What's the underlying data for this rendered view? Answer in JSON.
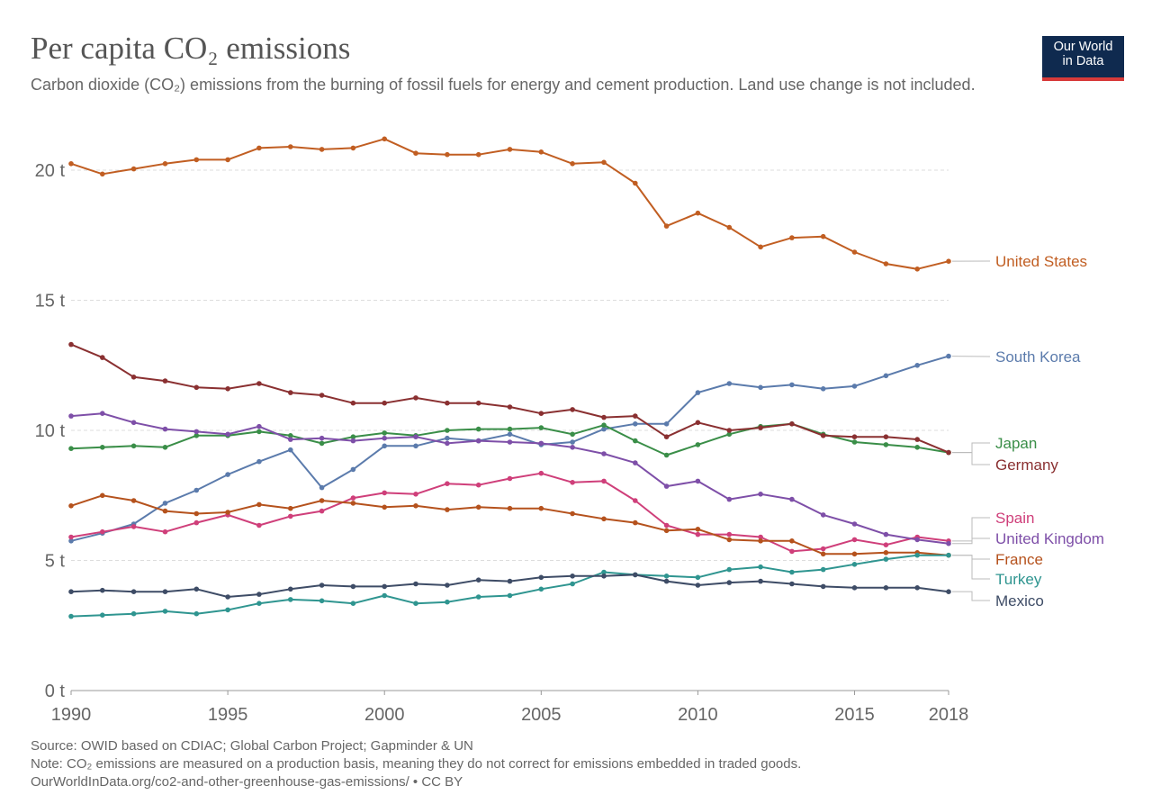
{
  "header": {
    "title": "Per capita CO₂ emissions",
    "subtitle": "Carbon dioxide (CO₂) emissions from the burning of fossil fuels for energy and cement production. Land use change is not included."
  },
  "logo": {
    "line1": "Our World",
    "line2": "in Data",
    "bg_color": "#0f2a4f",
    "accent_color": "#d73a3a"
  },
  "footer": {
    "source": "Source: OWID based on CDIAC; Global Carbon Project; Gapminder & UN",
    "note": "Note: CO₂ emissions are measured on a production basis, meaning they do not correct for emissions embedded in traded goods.",
    "link": "OurWorldInData.org/co2-and-other-greenhouse-gas-emissions/ • CC BY"
  },
  "chart_data": {
    "type": "line",
    "title": "Per capita CO₂ emissions",
    "xlabel": "",
    "ylabel": "",
    "xlim": [
      1990,
      2018
    ],
    "ylim": [
      0,
      21.5
    ],
    "grid": true,
    "x_ticks": [
      1990,
      1995,
      2000,
      2005,
      2010,
      2015,
      2018
    ],
    "y_ticks": [
      {
        "value": 0,
        "label": "0 t"
      },
      {
        "value": 5,
        "label": "5 t"
      },
      {
        "value": 10,
        "label": "10 t"
      },
      {
        "value": 15,
        "label": "15 t"
      },
      {
        "value": 20,
        "label": "20 t"
      }
    ],
    "legend": "right-end labels",
    "x": [
      1990,
      1991,
      1992,
      1993,
      1994,
      1995,
      1996,
      1997,
      1998,
      1999,
      2000,
      2001,
      2002,
      2003,
      2004,
      2005,
      2006,
      2007,
      2008,
      2009,
      2010,
      2011,
      2012,
      2013,
      2014,
      2015,
      2016,
      2017,
      2018
    ],
    "series": [
      {
        "name": "United States",
        "color": "#c15e22",
        "values": [
          20.25,
          19.85,
          20.05,
          20.25,
          20.4,
          20.4,
          20.85,
          20.9,
          20.8,
          20.85,
          21.2,
          20.65,
          20.6,
          20.6,
          20.8,
          20.7,
          20.25,
          20.3,
          19.5,
          17.85,
          18.35,
          17.8,
          17.05,
          17.4,
          17.45,
          16.85,
          16.4,
          16.2,
          16.5
        ]
      },
      {
        "name": "South Korea",
        "color": "#5b7bac",
        "values": [
          5.75,
          6.05,
          6.4,
          7.2,
          7.7,
          8.3,
          8.8,
          9.25,
          7.8,
          8.5,
          9.4,
          9.4,
          9.7,
          9.6,
          9.85,
          9.45,
          9.55,
          10.05,
          10.25,
          10.25,
          11.45,
          11.8,
          11.65,
          11.75,
          11.6,
          11.7,
          12.1,
          12.5,
          12.85
        ]
      },
      {
        "name": "Japan",
        "color": "#3a8e48",
        "values": [
          9.3,
          9.35,
          9.4,
          9.35,
          9.8,
          9.8,
          9.95,
          9.8,
          9.5,
          9.75,
          9.9,
          9.8,
          10.0,
          10.05,
          10.05,
          10.1,
          9.85,
          10.2,
          9.6,
          9.05,
          9.45,
          9.85,
          10.15,
          10.25,
          9.85,
          9.55,
          9.45,
          9.35,
          9.15
        ]
      },
      {
        "name": "Germany",
        "color": "#8a3031",
        "values": [
          13.3,
          12.8,
          12.05,
          11.9,
          11.65,
          11.6,
          11.8,
          11.45,
          11.35,
          11.05,
          11.05,
          11.25,
          11.05,
          11.05,
          10.9,
          10.65,
          10.8,
          10.5,
          10.55,
          9.75,
          10.3,
          10.0,
          10.1,
          10.25,
          9.8,
          9.75,
          9.75,
          9.65,
          9.15
        ]
      },
      {
        "name": "Spain",
        "color": "#cf3f7a",
        "values": [
          5.9,
          6.1,
          6.3,
          6.1,
          6.45,
          6.75,
          6.35,
          6.7,
          6.9,
          7.4,
          7.6,
          7.55,
          7.95,
          7.9,
          8.15,
          8.35,
          8.0,
          8.05,
          7.3,
          6.35,
          6.0,
          6.0,
          5.9,
          5.35,
          5.45,
          5.8,
          5.6,
          5.9,
          5.75
        ]
      },
      {
        "name": "United Kingdom",
        "color": "#7e4fa8",
        "values": [
          10.55,
          10.65,
          10.3,
          10.05,
          9.95,
          9.85,
          10.15,
          9.65,
          9.7,
          9.6,
          9.7,
          9.75,
          9.5,
          9.6,
          9.55,
          9.5,
          9.35,
          9.1,
          8.75,
          7.85,
          8.05,
          7.35,
          7.55,
          7.35,
          6.75,
          6.4,
          6.0,
          5.8,
          5.65
        ]
      },
      {
        "name": "France",
        "color": "#b5521d",
        "values": [
          7.1,
          7.5,
          7.3,
          6.9,
          6.8,
          6.85,
          7.15,
          7.0,
          7.3,
          7.2,
          7.05,
          7.1,
          6.95,
          7.05,
          7.0,
          7.0,
          6.8,
          6.6,
          6.45,
          6.15,
          6.2,
          5.8,
          5.75,
          5.75,
          5.25,
          5.25,
          5.3,
          5.3,
          5.2
        ]
      },
      {
        "name": "Turkey",
        "color": "#2f9590",
        "values": [
          2.85,
          2.9,
          2.95,
          3.05,
          2.95,
          3.1,
          3.35,
          3.5,
          3.45,
          3.35,
          3.65,
          3.35,
          3.4,
          3.6,
          3.65,
          3.9,
          4.1,
          4.55,
          4.45,
          4.4,
          4.35,
          4.65,
          4.75,
          4.55,
          4.65,
          4.85,
          5.05,
          5.2,
          5.2
        ]
      },
      {
        "name": "Mexico",
        "color": "#3e4c66",
        "values": [
          3.8,
          3.85,
          3.8,
          3.8,
          3.9,
          3.6,
          3.7,
          3.9,
          4.05,
          4.0,
          4.0,
          4.1,
          4.05,
          4.25,
          4.2,
          4.35,
          4.4,
          4.4,
          4.45,
          4.2,
          4.05,
          4.15,
          4.2,
          4.1,
          4.0,
          3.95,
          3.95,
          3.95,
          3.8
        ]
      }
    ]
  }
}
